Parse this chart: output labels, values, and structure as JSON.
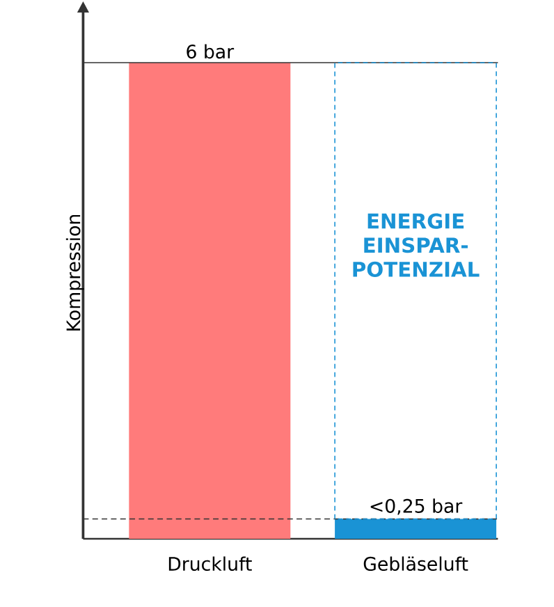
{
  "chart_data": {
    "type": "bar",
    "ylabel": "Kompression",
    "categories": [
      "Druckluft",
      "Gebläseluft"
    ],
    "values": [
      6,
      0.25
    ],
    "colors": [
      "#ff7b7b",
      "#1a93d5"
    ],
    "value_labels": [
      "6 bar",
      "<0,25 bar"
    ],
    "ref_lines": [
      {
        "axis": "y",
        "value": 6,
        "color": "#333333",
        "line_style": "solid"
      },
      {
        "axis": "y",
        "value": 0.25,
        "color": "#333333",
        "line_style": "dashed"
      }
    ],
    "annotations": [
      "ENERGIE EINSPAR-POTENZIAL"
    ]
  }
}
